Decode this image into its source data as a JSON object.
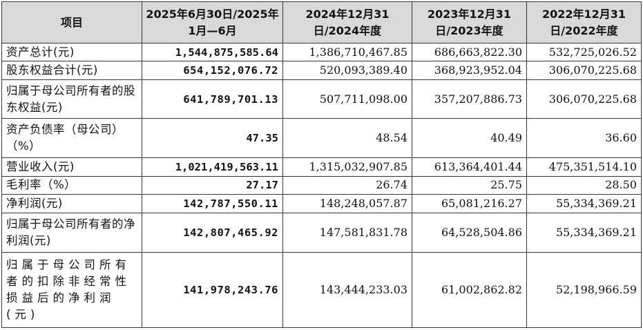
{
  "table": {
    "headers": [
      "项目",
      "2025年6月30日/2025年1月—6月",
      "2024年12月31日/2024年度",
      "2023年12月31日/2023年度",
      "2022年12月31日/2022年度"
    ],
    "rows": [
      {
        "label": "资产总计(元)",
        "values": [
          "1,544,875,585.64",
          "1,386,710,467.85",
          "686,663,822.30",
          "532,725,026.52"
        ]
      },
      {
        "label": "股东权益合计(元)",
        "values": [
          "654,152,076.72",
          "520,093,389.40",
          "368,923,952.04",
          "306,070,225.68"
        ]
      },
      {
        "label": "归属于母公司所有者的股东权益(元)",
        "values": [
          "641,789,701.13",
          "507,711,098.00",
          "357,207,886.73",
          "306,070,225.68"
        ]
      },
      {
        "label": "资产负债率（母公司）（%）",
        "values": [
          "47.35",
          "48.54",
          "40.49",
          "36.60"
        ]
      },
      {
        "label": "营业收入(元)",
        "values": [
          "1,021,419,563.11",
          "1,315,032,907.85",
          "613,364,401.44",
          "475,351,514.10"
        ]
      },
      {
        "label": "毛利率（%）",
        "values": [
          "27.17",
          "26.74",
          "25.75",
          "28.50"
        ]
      },
      {
        "label": "净利润(元)",
        "values": [
          "142,787,550.11",
          "148,248,057.87",
          "65,081,216.27",
          "55,334,369.21"
        ]
      },
      {
        "label": "归属于母公司所有者的净利润(元)",
        "values": [
          "142,807,465.92",
          "147,581,831.78",
          "64,528,504.86",
          "55,334,369.21"
        ]
      },
      {
        "label": "归属于母公司所有者的扣除非经常性损益后的净利润(元)",
        "values": [
          "141,978,243.76",
          "143,444,233.03",
          "61,002,862.82",
          "52,198,966.59"
        ]
      }
    ]
  }
}
